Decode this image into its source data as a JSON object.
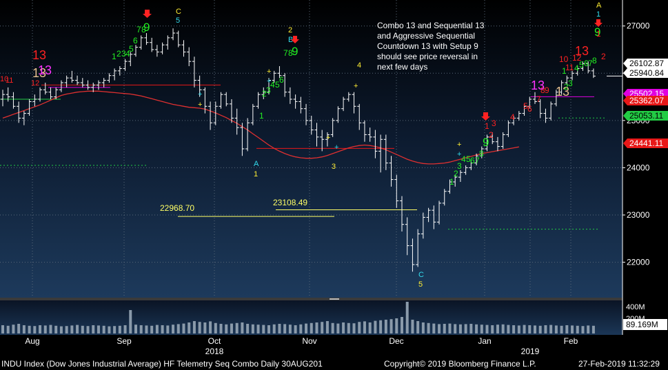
{
  "chart_data": {
    "type": "candlestick",
    "instrument": "INDU Index",
    "yaxis": {
      "ticks": [
        22000,
        23000,
        24000,
        25000,
        26000,
        27000
      ],
      "tick_labels": [
        "22000",
        "23000",
        "24000",
        "25000",
        "26000",
        "27000"
      ],
      "range": [
        21250,
        27550
      ]
    },
    "months": [
      "Aug",
      "Sep",
      "Oct",
      "Nov",
      "Dec",
      "Jan",
      "Feb"
    ],
    "years": [
      "2018",
      "2019"
    ],
    "price_flags": [
      {
        "value": 26102.87,
        "label": "26102.87",
        "bg": "#ffffff",
        "fg": "#000000"
      },
      {
        "value": 25940.84,
        "label": "25940.84",
        "bg": "#ffffff",
        "fg": "#000000"
      },
      {
        "value": 25502.15,
        "label": "25502.15",
        "bg": "#e000e0",
        "fg": "#ffffff"
      },
      {
        "value": 25362.07,
        "label": "25362.07",
        "bg": "#e81818",
        "fg": "#ffffff"
      },
      {
        "value": 25053.11,
        "label": "25053.11",
        "bg": "#22cc44",
        "fg": "#000000"
      },
      {
        "value": 24441.11,
        "label": "24441.11",
        "bg": "#e81818",
        "fg": "#ffffff"
      }
    ],
    "level_labels": [
      {
        "value": 22968.7,
        "label": "22968.70"
      },
      {
        "value": 23108.49,
        "label": "23108.49"
      }
    ],
    "annotation": [
      "Combo 13 and Sequential 13",
      "and Aggressive Sequential",
      "Countdown 13 with Setup 9",
      "should see price reversal in",
      "next few days"
    ],
    "volume": {
      "ticks": [
        "400M",
        "200M"
      ],
      "flag": "89.169M"
    },
    "ohlc": [
      [
        25450,
        25650,
        25300,
        25550
      ],
      [
        25550,
        25700,
        25400,
        25500
      ],
      [
        25500,
        25600,
        25250,
        25300
      ],
      [
        25300,
        25400,
        24950,
        25050
      ],
      [
        25050,
        25200,
        24900,
        25150
      ],
      [
        25150,
        25450,
        25100,
        25400
      ],
      [
        25400,
        25550,
        25300,
        25450
      ],
      [
        25450,
        25700,
        25400,
        25650
      ],
      [
        25650,
        25800,
        25550,
        25600
      ],
      [
        25600,
        25700,
        25450,
        25500
      ],
      [
        25500,
        25700,
        25450,
        25650
      ],
      [
        25650,
        25850,
        25600,
        25800
      ],
      [
        25800,
        25950,
        25700,
        25900
      ],
      [
        25900,
        26050,
        25800,
        25850
      ],
      [
        25850,
        25950,
        25750,
        25800
      ],
      [
        25800,
        25900,
        25700,
        25750
      ],
      [
        25750,
        25850,
        25650,
        25700
      ],
      [
        25700,
        25800,
        25600,
        25750
      ],
      [
        25750,
        25850,
        25650,
        25800
      ],
      [
        25800,
        25900,
        25700,
        25850
      ],
      [
        25850,
        26000,
        25800,
        25950
      ],
      [
        25950,
        26100,
        25850,
        26050
      ],
      [
        26050,
        26150,
        25950,
        26100
      ],
      [
        26100,
        26300,
        26050,
        26250
      ],
      [
        26250,
        26450,
        26150,
        26400
      ],
      [
        26400,
        26600,
        26350,
        26550
      ],
      [
        26550,
        26800,
        26500,
        26750
      ],
      [
        26750,
        26850,
        26600,
        26650
      ],
      [
        26650,
        26750,
        26450,
        26500
      ],
      [
        26500,
        26600,
        26350,
        26450
      ],
      [
        26450,
        26650,
        26400,
        26600
      ],
      [
        26600,
        26800,
        26500,
        26750
      ],
      [
        26750,
        26950,
        26700,
        26850
      ],
      [
        26850,
        26900,
        26550,
        26600
      ],
      [
        26600,
        26700,
        26350,
        26450
      ],
      [
        26450,
        26550,
        26150,
        26250
      ],
      [
        26250,
        26350,
        25700,
        25850
      ],
      [
        25850,
        25950,
        25500,
        25650
      ],
      [
        25650,
        25700,
        25150,
        25300
      ],
      [
        25300,
        25400,
        24800,
        24950
      ],
      [
        24950,
        25400,
        24900,
        25300
      ],
      [
        25300,
        25600,
        25250,
        25550
      ],
      [
        25550,
        25600,
        25300,
        25350
      ],
      [
        25350,
        25450,
        24950,
        25050
      ],
      [
        25050,
        25250,
        24700,
        24850
      ],
      [
        24850,
        24950,
        24250,
        24400
      ],
      [
        24400,
        25050,
        24350,
        24950
      ],
      [
        24950,
        25350,
        24900,
        25300
      ],
      [
        25300,
        25600,
        25250,
        25550
      ],
      [
        25550,
        25700,
        25450,
        25600
      ],
      [
        25600,
        25900,
        25550,
        25850
      ],
      [
        25850,
        26050,
        25800,
        26000
      ],
      [
        26000,
        26150,
        25900,
        25950
      ],
      [
        25950,
        26000,
        25500,
        25600
      ],
      [
        25600,
        25700,
        25350,
        25450
      ],
      [
        25450,
        25550,
        25250,
        25400
      ],
      [
        25400,
        25500,
        25150,
        25250
      ],
      [
        25250,
        25350,
        24900,
        25000
      ],
      [
        25000,
        25100,
        24700,
        24800
      ],
      [
        24800,
        24950,
        24450,
        24650
      ],
      [
        24650,
        24800,
        24350,
        24600
      ],
      [
        24600,
        24750,
        24450,
        24700
      ],
      [
        24700,
        25050,
        24650,
        25000
      ],
      [
        25000,
        25300,
        24950,
        25250
      ],
      [
        25250,
        25500,
        25200,
        25450
      ],
      [
        25450,
        25600,
        25400,
        25550
      ],
      [
        25550,
        25600,
        25150,
        25300
      ],
      [
        25300,
        25350,
        24800,
        24950
      ],
      [
        24950,
        25000,
        24550,
        24700
      ],
      [
        24700,
        24850,
        24550,
        24650
      ],
      [
        24650,
        24800,
        24200,
        24350
      ],
      [
        24350,
        24700,
        23900,
        24600
      ],
      [
        24600,
        24700,
        23950,
        24100
      ],
      [
        24100,
        24250,
        23600,
        23750
      ],
      [
        23750,
        23850,
        23150,
        23300
      ],
      [
        23300,
        23400,
        22650,
        22800
      ],
      [
        22800,
        22950,
        22150,
        22350
      ],
      [
        22350,
        22500,
        21800,
        21950
      ],
      [
        21950,
        22700,
        21900,
        22600
      ],
      [
        22600,
        23050,
        22500,
        22950
      ],
      [
        22950,
        23150,
        22850,
        23100
      ],
      [
        23100,
        23200,
        22700,
        22850
      ],
      [
        22850,
        23300,
        22800,
        23250
      ],
      [
        23250,
        23550,
        23200,
        23500
      ],
      [
        23500,
        23750,
        23450,
        23700
      ],
      [
        23700,
        23850,
        23600,
        23800
      ],
      [
        23800,
        23950,
        23700,
        23900
      ],
      [
        23900,
        24050,
        23850,
        24000
      ],
      [
        24000,
        24150,
        23950,
        24100
      ],
      [
        24100,
        24300,
        24050,
        24250
      ],
      [
        24250,
        24450,
        24200,
        24400
      ],
      [
        24400,
        24700,
        24350,
        24650
      ],
      [
        24650,
        24750,
        24500,
        24550
      ],
      [
        24550,
        24650,
        24350,
        24450
      ],
      [
        24450,
        24750,
        24400,
        24700
      ],
      [
        24700,
        25000,
        24650,
        24950
      ],
      [
        24950,
        25100,
        24900,
        25050
      ],
      [
        25050,
        25200,
        25000,
        25150
      ],
      [
        25150,
        25350,
        25100,
        25300
      ],
      [
        25300,
        25500,
        25250,
        25450
      ],
      [
        25450,
        25600,
        25350,
        25400
      ],
      [
        25400,
        25450,
        25050,
        25150
      ],
      [
        25150,
        25250,
        24950,
        25050
      ],
      [
        25050,
        25400,
        25000,
        25350
      ],
      [
        25350,
        25650,
        25300,
        25600
      ],
      [
        25600,
        25850,
        25550,
        25800
      ],
      [
        25800,
        25950,
        25750,
        25900
      ],
      [
        25900,
        26050,
        25850,
        26000
      ],
      [
        26000,
        26150,
        25950,
        26100
      ],
      [
        26100,
        26250,
        26050,
        26200
      ],
      [
        26200,
        26250,
        26000,
        26050
      ],
      [
        26050,
        26100,
        25900,
        25940
      ]
    ],
    "ma": [
      25050,
      25090,
      25130,
      25170,
      25210,
      25250,
      25290,
      25330,
      25380,
      25430,
      25480,
      25530,
      25560,
      25580,
      25600,
      25610,
      25620,
      25620,
      25620,
      25610,
      25600,
      25590,
      25580,
      25570,
      25560,
      25540,
      25520,
      25490,
      25460,
      25430,
      25400,
      25370,
      25340,
      25320,
      25300,
      25280,
      25270,
      25260,
      25240,
      25200,
      25160,
      25110,
      25060,
      25000,
      24940,
      24870,
      24800,
      24720,
      24640,
      24560,
      24480,
      24410,
      24350,
      24300,
      24260,
      24230,
      24210,
      24200,
      24200,
      24210,
      24230,
      24260,
      24300,
      24340,
      24380,
      24420,
      24450,
      24470,
      24480,
      24470,
      24450,
      24420,
      24380,
      24330,
      24280,
      24230,
      24180,
      24140,
      24110,
      24090,
      24080,
      24080,
      24090,
      24100,
      24120,
      24150,
      24180,
      24210,
      24240,
      24270,
      24300,
      24320,
      24340,
      24360,
      24380,
      24400,
      24420,
      24441
    ],
    "volume_values": [
      0.3,
      0.28,
      0.32,
      0.35,
      0.3,
      0.28,
      0.27,
      0.3,
      0.29,
      0.31,
      0.28,
      0.26,
      0.27,
      0.29,
      0.31,
      0.28,
      0.27,
      0.3,
      0.29,
      0.28,
      0.26,
      0.27,
      0.28,
      0.3,
      0.85,
      0.32,
      0.3,
      0.29,
      0.28,
      0.31,
      0.3,
      0.29,
      0.32,
      0.34,
      0.36,
      0.4,
      0.45,
      0.42,
      0.4,
      0.44,
      0.38,
      0.35,
      0.33,
      0.36,
      0.38,
      0.4,
      0.35,
      0.33,
      0.32,
      0.31,
      0.3,
      0.33,
      0.35,
      0.34,
      0.32,
      0.3,
      0.33,
      0.36,
      0.38,
      0.4,
      0.42,
      0.45,
      0.38,
      0.36,
      0.4,
      0.38,
      0.37,
      0.42,
      0.44,
      0.4,
      0.46,
      0.48,
      0.5,
      0.52,
      0.55,
      0.6,
      1.15,
      0.5,
      0.45,
      0.4,
      0.38,
      0.36,
      0.34,
      0.35,
      0.36,
      0.34,
      0.33,
      0.34,
      0.35,
      0.33,
      0.32,
      0.31,
      0.3,
      0.32,
      0.33,
      0.31,
      0.3,
      0.29,
      0.31,
      0.3,
      0.29,
      0.28,
      0.3,
      0.31,
      0.29,
      0.28,
      0.3,
      0.29,
      0.28,
      0.27,
      0.29,
      0.28
    ]
  },
  "footer": {
    "left": "INDU Index (Dow Jones Industrial Average) HF Telemetry Seq Combo  Daily 30AUG201",
    "center": "Copyright© 2019 Bloomberg Finance L.P.",
    "right": "27-Feb-2019 11:32:29"
  }
}
